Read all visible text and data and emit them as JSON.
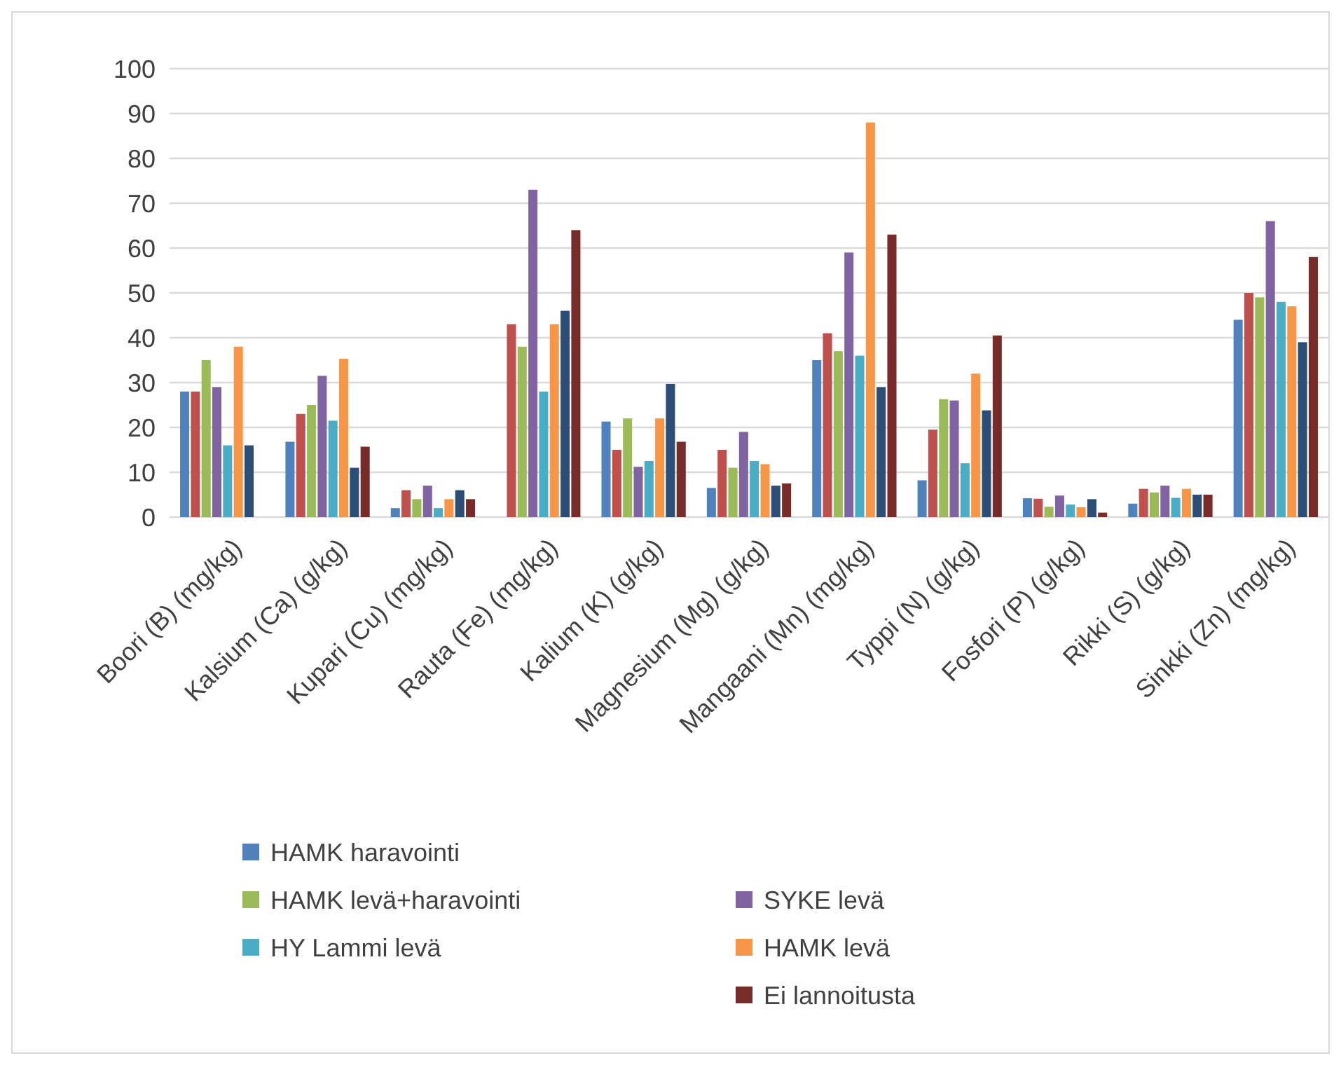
{
  "chart_data": {
    "type": "bar",
    "categories": [
      "Boori (B) (mg/kg)",
      "Kalsium (Ca) (g/kg)",
      "Kupari (Cu) (mg/kg)",
      "Rauta (Fe) (mg/kg)",
      "Kalium (K) (g/kg)",
      "Magnesium (Mg) (g/kg)",
      "Mangaani (Mn) (mg/kg)",
      "Typpi (N) (g/kg)",
      "Fosfori (P) (g/kg)",
      "Rikki (S) (g/kg)",
      "Sinkki (Zn) (mg/kg)"
    ],
    "series": [
      {
        "name": "HAMK haravointi",
        "color": "#4f81bd",
        "values": [
          28,
          16.8,
          2,
          null,
          21.3,
          6.5,
          35,
          8.2,
          4.2,
          3,
          44
        ]
      },
      {
        "color": "#c0504d",
        "values": [
          28,
          23,
          6,
          43,
          15,
          15,
          41,
          19.5,
          4.1,
          6.3,
          50
        ]
      },
      {
        "name": "HAMK levä+haravointi",
        "color": "#9bbb59",
        "values": [
          35,
          25,
          4,
          38,
          22,
          11,
          37,
          26.3,
          2.3,
          5.5,
          49
        ]
      },
      {
        "name": "SYKE levä",
        "color": "#8064a2",
        "values": [
          29,
          31.5,
          7,
          73,
          11.2,
          19,
          59,
          26,
          4.8,
          7,
          66
        ]
      },
      {
        "name": "HY Lammi levä",
        "color": "#4bacc6",
        "values": [
          16,
          21.5,
          2,
          28,
          12.5,
          12.5,
          36,
          12,
          2.8,
          4.3,
          48
        ]
      },
      {
        "name": "HAMK levä",
        "color": "#f79646",
        "values": [
          38,
          35.3,
          4,
          43,
          22,
          11.8,
          88,
          32,
          2.2,
          6.3,
          47
        ]
      },
      {
        "color": "#2c4d75",
        "values": [
          16,
          11,
          6,
          46,
          29.7,
          7,
          29,
          23.8,
          4,
          5,
          39
        ]
      },
      {
        "name": "Ei lannoitusta",
        "color": "#772c2a",
        "values": [
          null,
          15.7,
          4,
          64,
          16.8,
          7.5,
          63,
          40.5,
          1,
          5,
          58
        ]
      }
    ],
    "ylim": [
      0,
      100
    ],
    "yticks": [
      0,
      10,
      20,
      30,
      40,
      50,
      60,
      70,
      80,
      90,
      100
    ],
    "grid": "y",
    "legend": "bottom"
  }
}
